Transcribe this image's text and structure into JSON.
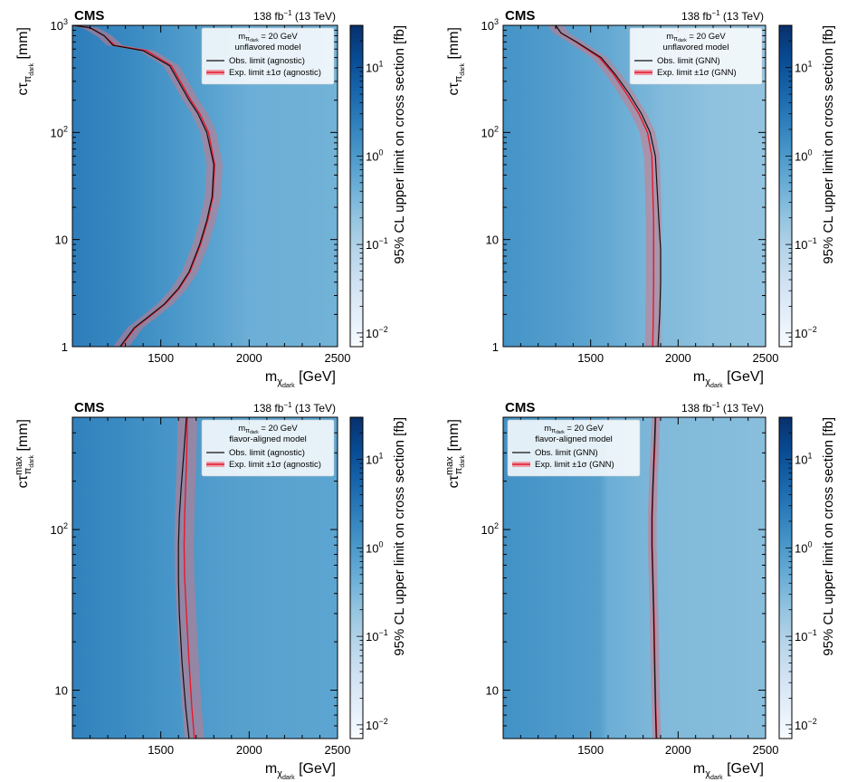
{
  "chart_data": [
    {
      "type": "heatmap",
      "experiment": "CMS",
      "lumi_label": "138 fb⁻¹ (13 TeV)",
      "legend_header": [
        "mπdark = 20 GeV",
        "unflavored model"
      ],
      "legend_entries": [
        "Obs. limit (agnostic)",
        "Exp. limit ±1σ (agnostic)"
      ],
      "legend_position": "top-right",
      "xlabel": "mXdark [GeV]",
      "ylabel": "cτπdark [mm]",
      "colorbar_label": "95% CL upper limit on cross section [fb]",
      "x_scale": "linear",
      "xlim": [
        1000,
        2500
      ],
      "x_ticks": [
        1500,
        2000,
        2500
      ],
      "y_scale": "log",
      "ylim": [
        1,
        1000
      ],
      "y_ticks": [
        1,
        10,
        100,
        1000
      ],
      "y_tick_labels": [
        "1",
        "10",
        "10²",
        "10³"
      ],
      "colorbar_scale": "log",
      "colorbar_range": [
        0.007,
        30
      ],
      "colorbar_ticks": [
        0.01,
        0.1,
        1,
        10
      ],
      "colorbar_tick_labels": [
        "10⁻²",
        "10⁻¹",
        "10⁰",
        "10¹"
      ],
      "heatmap_profile": {
        "x": [
          1000,
          1300,
          1600,
          1800,
          2000,
          2500
        ],
        "limit_fb": [
          2.5,
          1.8,
          1.0,
          0.7,
          0.45,
          0.4
        ]
      },
      "observed_limit": {
        "x": [
          1000,
          1100,
          1180,
          1230,
          1400,
          1550,
          1600,
          1660,
          1710,
          1760,
          1800,
          1790,
          1760,
          1720,
          1660,
          1600,
          1520,
          1430,
          1350,
          1270
        ],
        "y": [
          1000,
          950,
          800,
          650,
          580,
          420,
          300,
          200,
          150,
          100,
          50,
          25,
          15,
          9,
          5,
          3.5,
          2.5,
          1.9,
          1.5,
          1.0
        ]
      },
      "expected_limit": {
        "x": [
          1000,
          1100,
          1180,
          1240,
          1420,
          1560,
          1610,
          1670,
          1720,
          1770,
          1805,
          1795,
          1765,
          1725,
          1665,
          1605,
          1525,
          1435,
          1355,
          1275
        ],
        "y": [
          1000,
          950,
          800,
          650,
          580,
          420,
          300,
          200,
          150,
          100,
          50,
          25,
          15,
          9,
          5,
          3.5,
          2.5,
          1.9,
          1.5,
          1.0
        ],
        "band_halfwidth": 45
      }
    },
    {
      "type": "heatmap",
      "experiment": "CMS",
      "lumi_label": "138 fb⁻¹ (13 TeV)",
      "legend_header": [
        "mπdark = 20 GeV",
        "unflavored model"
      ],
      "legend_entries": [
        "Obs. limit (GNN)",
        "Exp. limit ±1σ (GNN)"
      ],
      "legend_position": "top-right",
      "xlabel": "mXdark [GeV]",
      "ylabel": "cτπdark [mm]",
      "colorbar_label": "95% CL upper limit on cross section [fb]",
      "x_scale": "linear",
      "xlim": [
        1000,
        2500
      ],
      "x_ticks": [
        1500,
        2000,
        2500
      ],
      "y_scale": "log",
      "ylim": [
        1,
        1000
      ],
      "y_ticks": [
        1,
        10,
        100,
        1000
      ],
      "y_tick_labels": [
        "1",
        "10",
        "10²",
        "10³"
      ],
      "colorbar_scale": "log",
      "colorbar_range": [
        0.007,
        30
      ],
      "colorbar_ticks": [
        0.01,
        0.1,
        1,
        10
      ],
      "colorbar_tick_labels": [
        "10⁻²",
        "10⁻¹",
        "10⁰",
        "10¹"
      ],
      "heatmap_profile": {
        "x": [
          1000,
          1300,
          1600,
          1900,
          2200,
          2500
        ],
        "limit_fb": [
          1.2,
          0.9,
          0.55,
          0.3,
          0.22,
          0.2
        ]
      },
      "observed_limit": {
        "x": [
          1300,
          1330,
          1420,
          1560,
          1640,
          1720,
          1790,
          1840,
          1870,
          1880,
          1890,
          1900,
          1900,
          1895,
          1885
        ],
        "y": [
          1000,
          850,
          700,
          500,
          350,
          230,
          150,
          100,
          60,
          30,
          15,
          8,
          4,
          2,
          1
        ]
      },
      "expected_limit": {
        "x": [
          1300,
          1330,
          1415,
          1550,
          1630,
          1705,
          1775,
          1825,
          1850,
          1855,
          1860,
          1860,
          1860,
          1858,
          1855
        ],
        "y": [
          1000,
          850,
          700,
          500,
          350,
          230,
          150,
          100,
          60,
          30,
          15,
          8,
          4,
          2,
          1
        ],
        "band_halfwidth": 45
      }
    },
    {
      "type": "heatmap",
      "experiment": "CMS",
      "lumi_label": "138 fb⁻¹ (13 TeV)",
      "legend_header": [
        "mπdark = 20 GeV",
        "flavor-aligned model"
      ],
      "legend_entries": [
        "Obs. limit (agnostic)",
        "Exp. limit ±1σ (agnostic)"
      ],
      "legend_position": "top-right",
      "xlabel": "mXdark [GeV]",
      "ylabel": "cτmaxπdark [mm]",
      "colorbar_label": "95% CL upper limit on cross section [fb]",
      "x_scale": "linear",
      "xlim": [
        1000,
        2500
      ],
      "x_ticks": [
        1500,
        2000,
        2500
      ],
      "y_scale": "log",
      "ylim": [
        5,
        500
      ],
      "y_ticks": [
        10,
        100
      ],
      "y_tick_labels": [
        "10",
        "10²"
      ],
      "colorbar_scale": "log",
      "colorbar_range": [
        0.007,
        30
      ],
      "colorbar_ticks": [
        0.01,
        0.1,
        1,
        10
      ],
      "colorbar_tick_labels": [
        "10⁻²",
        "10⁻¹",
        "10⁰",
        "10¹"
      ],
      "heatmap_profile": {
        "x": [
          1000,
          1300,
          1600,
          1900,
          2200,
          2500
        ],
        "limit_fb": [
          2.2,
          1.6,
          1.1,
          0.8,
          0.7,
          0.65
        ]
      },
      "observed_limit": {
        "x": [
          1645,
          1635,
          1625,
          1615,
          1605,
          1600,
          1600,
          1605,
          1620,
          1640,
          1660
        ],
        "y": [
          500,
          350,
          250,
          180,
          120,
          80,
          50,
          30,
          15,
          8,
          5
        ]
      },
      "expected_limit": {
        "x": [
          1650,
          1648,
          1645,
          1640,
          1635,
          1632,
          1635,
          1645,
          1660,
          1675,
          1690
        ],
        "y": [
          500,
          350,
          250,
          180,
          120,
          80,
          50,
          30,
          15,
          8,
          5
        ],
        "band_halfwidth": 55
      }
    },
    {
      "type": "heatmap",
      "experiment": "CMS",
      "lumi_label": "138 fb⁻¹ (13 TeV)",
      "legend_header": [
        "mπdark = 20 GeV",
        "flavor-aligned model"
      ],
      "legend_entries": [
        "Obs. limit (GNN)",
        "Exp. limit ±1σ (GNN)"
      ],
      "legend_position": "top-left",
      "xlabel": "mXdark [GeV]",
      "ylabel": "cτmaxπdark [mm]",
      "colorbar_label": "95% CL upper limit on cross section [fb]",
      "x_scale": "linear",
      "xlim": [
        1000,
        2500
      ],
      "x_ticks": [
        1500,
        2000,
        2500
      ],
      "y_scale": "log",
      "ylim": [
        5,
        500
      ],
      "y_ticks": [
        10,
        100
      ],
      "y_tick_labels": [
        "10",
        "10²"
      ],
      "colorbar_scale": "log",
      "colorbar_range": [
        0.007,
        30
      ],
      "colorbar_ticks": [
        0.01,
        0.1,
        1,
        10
      ],
      "colorbar_tick_labels": [
        "10⁻²",
        "10⁻¹",
        "10⁰",
        "10¹"
      ],
      "heatmap_profile": {
        "x": [
          1000,
          1300,
          1550,
          1600,
          1900,
          2500
        ],
        "limit_fb": [
          1.3,
          1.0,
          0.8,
          0.45,
          0.3,
          0.25
        ]
      },
      "observed_limit": {
        "x": [
          1870,
          1865,
          1860,
          1855,
          1850,
          1850,
          1855,
          1860,
          1865,
          1870,
          1875
        ],
        "y": [
          500,
          350,
          250,
          180,
          120,
          80,
          50,
          30,
          15,
          8,
          5
        ]
      },
      "expected_limit": {
        "x": [
          1872,
          1868,
          1862,
          1857,
          1852,
          1852,
          1857,
          1862,
          1867,
          1872,
          1878
        ],
        "y": [
          500,
          350,
          250,
          180,
          120,
          80,
          50,
          30,
          15,
          8,
          5
        ],
        "band_halfwidth": 25
      }
    }
  ]
}
